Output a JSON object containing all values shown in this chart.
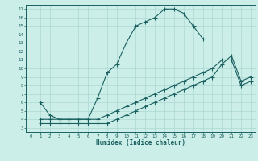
{
  "xlabel": "Humidex (Indice chaleur)",
  "bg_color": "#cceee8",
  "line_color": "#1a6060",
  "grid_color": "#aad8d0",
  "xlim": [
    -0.5,
    23.5
  ],
  "ylim": [
    2.5,
    17.5
  ],
  "xticks": [
    0,
    1,
    2,
    3,
    4,
    5,
    6,
    7,
    8,
    9,
    10,
    11,
    12,
    13,
    14,
    15,
    16,
    17,
    18,
    19,
    20,
    21,
    22,
    23
  ],
  "yticks": [
    3,
    4,
    5,
    6,
    7,
    8,
    9,
    10,
    11,
    12,
    13,
    14,
    15,
    16,
    17
  ],
  "curve1_x": [
    1,
    2,
    3,
    4,
    5,
    6,
    7,
    8,
    9,
    10,
    11,
    12,
    13,
    14,
    15,
    16,
    17,
    18
  ],
  "curve1_y": [
    6,
    4.5,
    4,
    4,
    4,
    4,
    6.5,
    9.5,
    10.5,
    13,
    15,
    15.5,
    16,
    17,
    17,
    16.5,
    15,
    13.5
  ],
  "curve2_x": [
    1,
    2,
    3,
    4,
    5,
    6,
    7,
    8,
    9,
    10,
    11,
    12,
    13,
    14,
    15,
    16,
    17,
    18,
    19,
    20,
    21,
    22,
    23
  ],
  "curve2_y": [
    4,
    4,
    4,
    4,
    4,
    4,
    4,
    4.5,
    5,
    5.5,
    6,
    6.5,
    7,
    7.5,
    8,
    8.5,
    9,
    9.5,
    10,
    11,
    11,
    8,
    8.5
  ],
  "curve3_x": [
    1,
    2,
    3,
    4,
    5,
    6,
    7,
    8,
    9,
    10,
    11,
    12,
    13,
    14,
    15,
    16,
    17,
    18,
    19,
    20,
    21,
    22,
    23
  ],
  "curve3_y": [
    3.5,
    3.5,
    3.5,
    3.5,
    3.5,
    3.5,
    3.5,
    3.5,
    4,
    4.5,
    5,
    5.5,
    6,
    6.5,
    7,
    7.5,
    8,
    8.5,
    9,
    10.5,
    11.5,
    8.5,
    9
  ]
}
